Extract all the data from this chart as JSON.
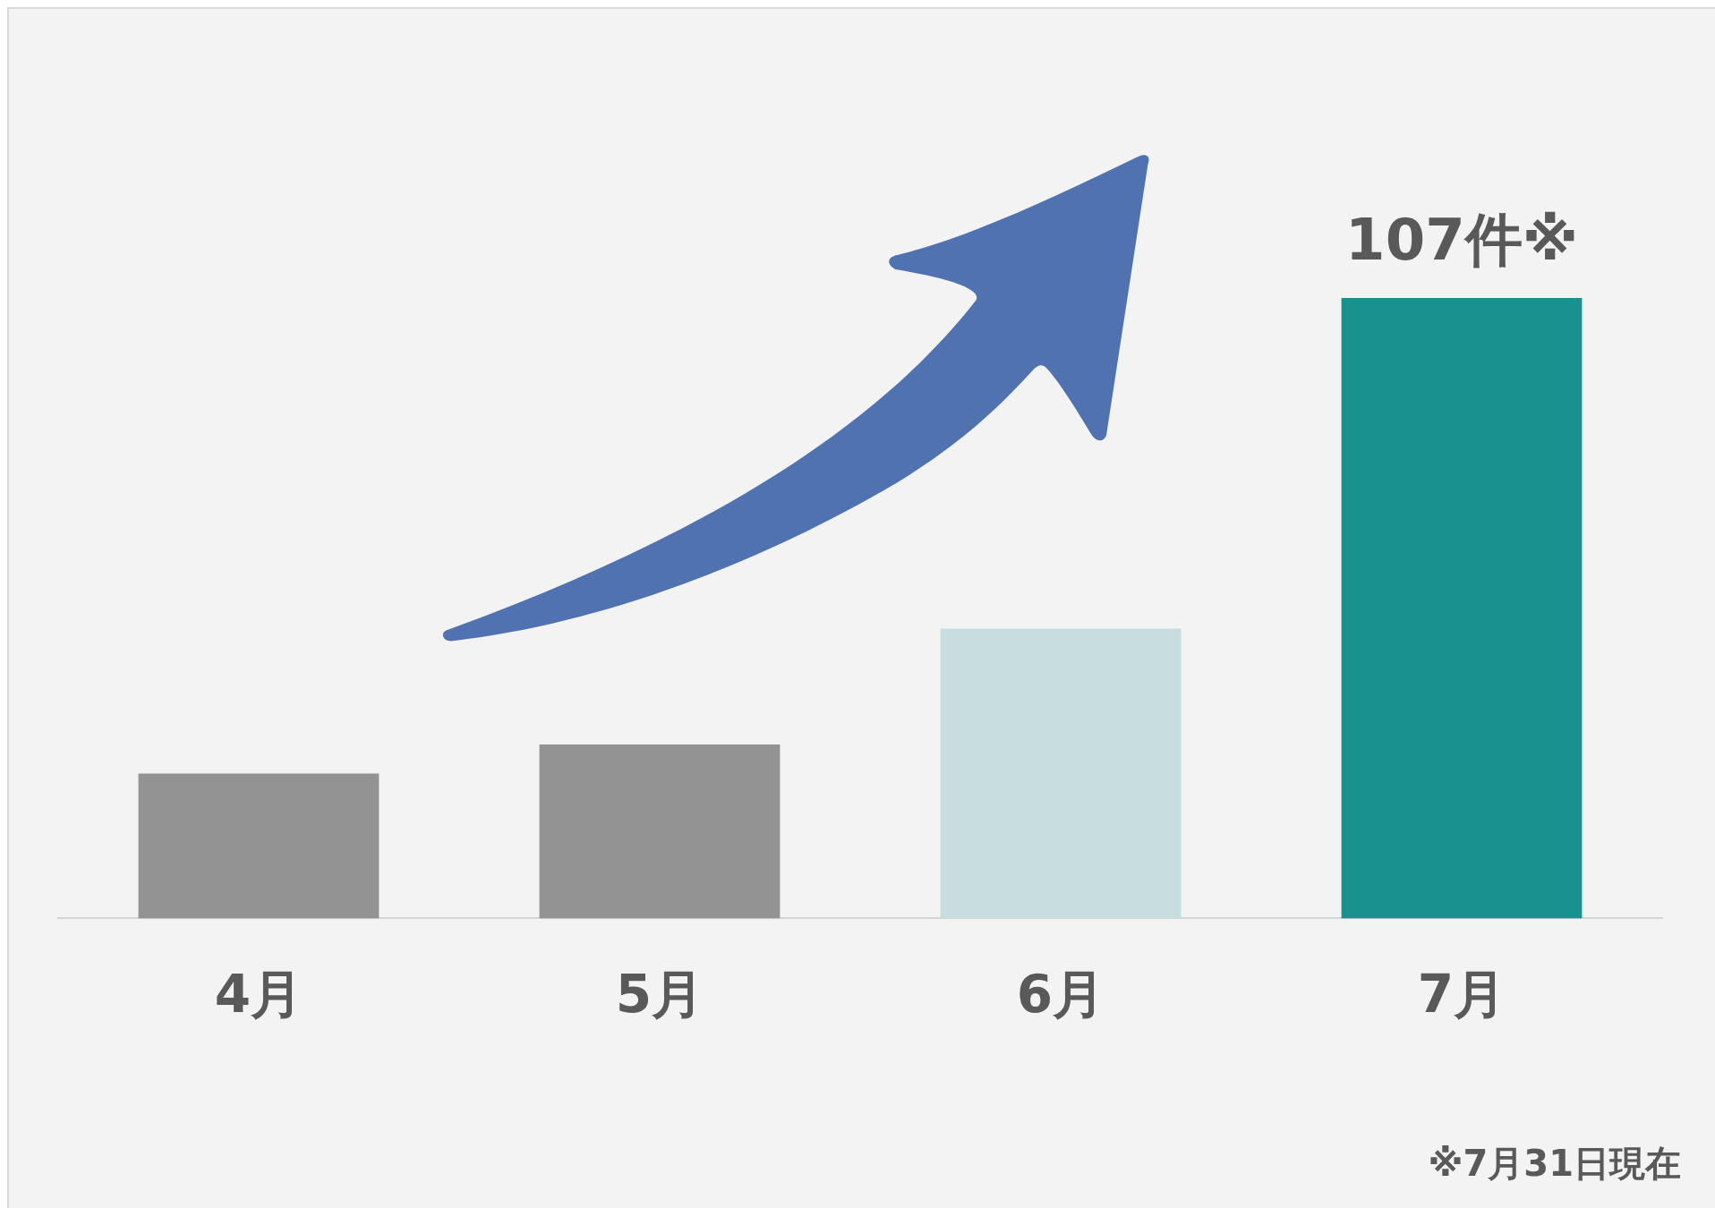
{
  "chart_data": {
    "type": "bar",
    "categories": [
      "4月",
      "5月",
      "6月",
      "7月"
    ],
    "values": [
      25,
      30,
      50,
      107
    ],
    "colors": [
      "#939393",
      "#939393",
      "#c8dde0",
      "#18918f"
    ],
    "value_labels": [
      null,
      null,
      null,
      "107件※"
    ],
    "annotations": [
      "※7月31日現在"
    ],
    "legend": false,
    "grid": false
  }
}
